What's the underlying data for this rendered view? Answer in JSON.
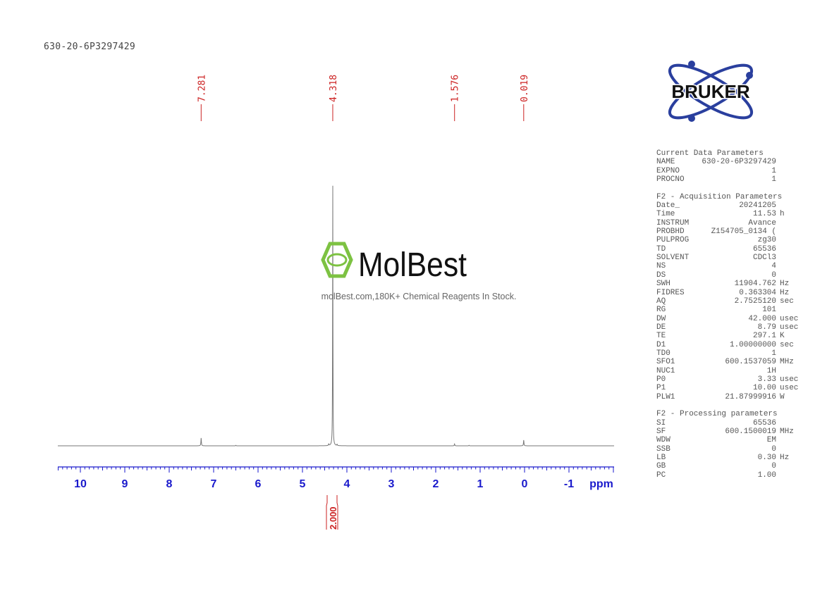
{
  "header": {
    "sample_title": "630-20-6P3297429"
  },
  "logo": {
    "text": "BRUKER",
    "color": "#2a3f9e"
  },
  "watermark": {
    "brand": "MolBest",
    "tagline": "molBest.com,180K+ Chemical Reagents In Stock.",
    "color": "#7dc242"
  },
  "chart_data": {
    "type": "line",
    "title": "",
    "xlabel": "ppm",
    "xlim": [
      10.5,
      -2.0
    ],
    "x_reversed": true,
    "grid": false,
    "x_ticks": [
      "10",
      "9",
      "8",
      "7",
      "6",
      "5",
      "4",
      "3",
      "2",
      "1",
      "0",
      "-1"
    ],
    "x_tick_values": [
      10,
      9,
      8,
      7,
      6,
      5,
      4,
      3,
      2,
      1,
      0,
      -1
    ],
    "peak_labels": [
      "7.281",
      "4.318",
      "1.576",
      "0.019"
    ],
    "peaks": [
      {
        "ppm": 7.281,
        "rel_height": 0.03
      },
      {
        "ppm": 4.318,
        "rel_height": 1.0
      },
      {
        "ppm": 4.41,
        "rel_height": 0.006
      },
      {
        "ppm": 4.22,
        "rel_height": 0.005
      },
      {
        "ppm": 1.576,
        "rel_height": 0.007
      },
      {
        "ppm": 0.019,
        "rel_height": 0.022
      },
      {
        "ppm": 6.5,
        "rel_height": 0.002
      },
      {
        "ppm": 1.25,
        "rel_height": 0.002
      }
    ],
    "integrals": [
      {
        "from": 4.5,
        "to": 4.2,
        "label": "2.000"
      }
    ],
    "colors": {
      "spectrum": "#777777",
      "axis": "#1a1acc",
      "labels": "#cc2222"
    }
  },
  "params": {
    "sections": [
      {
        "title": "Current Data Parameters",
        "rows": [
          [
            "NAME",
            "630-20-6P3297429",
            ""
          ],
          [
            "EXPNO",
            "1",
            ""
          ],
          [
            "PROCNO",
            "1",
            ""
          ]
        ]
      },
      {
        "title": "F2 - Acquisition Parameters",
        "rows": [
          [
            "Date_",
            "20241205",
            ""
          ],
          [
            "Time",
            "11.53",
            "h"
          ],
          [
            "INSTRUM",
            "Avance",
            ""
          ],
          [
            "PROBHD",
            "Z154705_0134 (",
            ""
          ],
          [
            "PULPROG",
            "zg30",
            ""
          ],
          [
            "TD",
            "65536",
            ""
          ],
          [
            "SOLVENT",
            "CDCl3",
            ""
          ],
          [
            "NS",
            "4",
            ""
          ],
          [
            "DS",
            "0",
            ""
          ],
          [
            "SWH",
            "11904.762",
            "Hz"
          ],
          [
            "FIDRES",
            "0.363304",
            "Hz"
          ],
          [
            "AQ",
            "2.7525120",
            "sec"
          ],
          [
            "RG",
            "101",
            ""
          ],
          [
            "DW",
            "42.000",
            "usec"
          ],
          [
            "DE",
            "8.79",
            "usec"
          ],
          [
            "TE",
            "297.1",
            "K"
          ],
          [
            "D1",
            "1.00000000",
            "sec"
          ],
          [
            "TD0",
            "1",
            ""
          ],
          [
            "SFO1",
            "600.1537059",
            "MHz"
          ],
          [
            "NUC1",
            "1H",
            ""
          ],
          [
            "P0",
            "3.33",
            "usec"
          ],
          [
            "P1",
            "10.00",
            "usec"
          ],
          [
            "PLW1",
            "21.87999916",
            "W"
          ]
        ]
      },
      {
        "title": "F2 - Processing parameters",
        "rows": [
          [
            "SI",
            "65536",
            ""
          ],
          [
            "SF",
            "600.1500019",
            "MHz"
          ],
          [
            "WDW",
            "EM",
            ""
          ],
          [
            "SSB",
            "0",
            ""
          ],
          [
            "LB",
            "0.30",
            "Hz"
          ],
          [
            "GB",
            "0",
            ""
          ],
          [
            "PC",
            "1.00",
            ""
          ]
        ]
      }
    ]
  }
}
